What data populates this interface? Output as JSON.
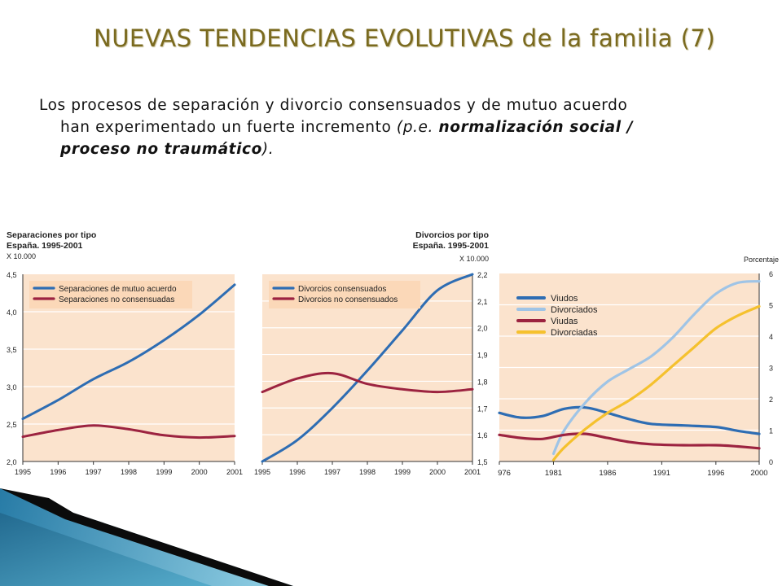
{
  "slide": {
    "title": "NUEVAS TENDENCIAS EVOLUTIVAS de la familia (7)",
    "body": {
      "line1": "Los procesos de separación y divorcio consensuados y de mutuo acuerdo",
      "line2_plain": "han experimentado un fuerte incremento ",
      "line2_italic": "(p.e. ",
      "line2_bold": "normalización social /",
      "line3_bold": "proceso no traumático",
      "line3_italic": ")."
    }
  },
  "colors": {
    "series_blue": "#2e6db3",
    "series_red": "#9c2340",
    "series_lightblue": "#9fc4e6",
    "series_yellow": "#f5c12e",
    "plot_background": "#fbe3cd",
    "title_olive": "#7a6a1f"
  },
  "chart_data": [
    {
      "type": "line",
      "title": "Separaciones por tipo",
      "subtitle": "España. 1995-2001",
      "units": "X 10.000",
      "x": [
        "1995",
        "1996",
        "1997",
        "1998",
        "1999",
        "2000",
        "2001"
      ],
      "ylim": [
        2.0,
        4.5
      ],
      "yticks": [
        "2,0",
        "2,5",
        "3,0",
        "3,5",
        "4,0",
        "4,5"
      ],
      "grid": true,
      "legend_position": "top-left",
      "series": [
        {
          "name": "Separaciones de mutuo acuerdo",
          "color": "#2e6db3",
          "values": [
            2.57,
            2.82,
            3.1,
            3.33,
            3.62,
            3.96,
            4.36
          ]
        },
        {
          "name": "Separaciones no consensuadas",
          "color": "#9c2340",
          "values": [
            2.33,
            2.42,
            2.48,
            2.43,
            2.35,
            2.32,
            2.34
          ]
        }
      ]
    },
    {
      "type": "line",
      "title": "Divorcios por tipo",
      "subtitle": "España. 1995-2001",
      "units": "X 10.000",
      "x": [
        "1995",
        "1996",
        "1997",
        "1998",
        "1999",
        "2000",
        "2001"
      ],
      "ylim": [
        1.5,
        2.2
      ],
      "yticks": [
        "1,5",
        "1,6",
        "1,7",
        "1,8",
        "1,9",
        "2,0",
        "2,1",
        "2,2"
      ],
      "grid": true,
      "legend_position": "top-left",
      "series": [
        {
          "name": "Divorcios consensuados",
          "color": "#2e6db3",
          "values": [
            1.5,
            1.58,
            1.7,
            1.84,
            1.99,
            2.14,
            2.2
          ]
        },
        {
          "name": "Divorcios no consensuados",
          "color": "#9c2340",
          "values": [
            1.76,
            1.81,
            1.83,
            1.79,
            1.77,
            1.76,
            1.77
          ]
        }
      ]
    },
    {
      "type": "line",
      "title": "",
      "units": "Porcentaje",
      "xticks": [
        "976",
        "1981",
        "1986",
        "1991",
        "1996",
        "2000"
      ],
      "xlim": [
        1976,
        2000
      ],
      "ylim": [
        0,
        6
      ],
      "yticks": [
        "0",
        "1",
        "2",
        "3",
        "4",
        "5",
        "6"
      ],
      "grid": true,
      "legend_position": "top-left",
      "series": [
        {
          "name": "Viudos",
          "color": "#2e6db3",
          "points": [
            [
              1976,
              1.55
            ],
            [
              1978,
              1.4
            ],
            [
              1980,
              1.45
            ],
            [
              1982,
              1.68
            ],
            [
              1984,
              1.72
            ],
            [
              1986,
              1.55
            ],
            [
              1988,
              1.35
            ],
            [
              1990,
              1.2
            ],
            [
              1993,
              1.15
            ],
            [
              1996,
              1.1
            ],
            [
              1998,
              0.98
            ],
            [
              2000,
              0.88
            ]
          ]
        },
        {
          "name": "Divorciados",
          "color": "#9fc4e6",
          "points": [
            [
              1981,
              0.25
            ],
            [
              1982,
              1.0
            ],
            [
              1984,
              1.9
            ],
            [
              1986,
              2.55
            ],
            [
              1988,
              2.95
            ],
            [
              1990,
              3.35
            ],
            [
              1992,
              3.95
            ],
            [
              1994,
              4.7
            ],
            [
              1996,
              5.35
            ],
            [
              1998,
              5.7
            ],
            [
              2000,
              5.75
            ]
          ]
        },
        {
          "name": "Viudas",
          "color": "#9c2340",
          "points": [
            [
              1976,
              0.85
            ],
            [
              1978,
              0.75
            ],
            [
              1980,
              0.72
            ],
            [
              1982,
              0.85
            ],
            [
              1984,
              0.88
            ],
            [
              1986,
              0.75
            ],
            [
              1988,
              0.62
            ],
            [
              1990,
              0.55
            ],
            [
              1993,
              0.52
            ],
            [
              1996,
              0.52
            ],
            [
              1998,
              0.48
            ],
            [
              2000,
              0.42
            ]
          ]
        },
        {
          "name": "Divorciadas",
          "color": "#f5c12e",
          "points": [
            [
              1981,
              0.05
            ],
            [
              1982,
              0.45
            ],
            [
              1984,
              1.05
            ],
            [
              1986,
              1.55
            ],
            [
              1988,
              1.95
            ],
            [
              1990,
              2.45
            ],
            [
              1992,
              3.05
            ],
            [
              1994,
              3.65
            ],
            [
              1996,
              4.25
            ],
            [
              1998,
              4.65
            ],
            [
              2000,
              4.95
            ]
          ]
        }
      ]
    }
  ]
}
